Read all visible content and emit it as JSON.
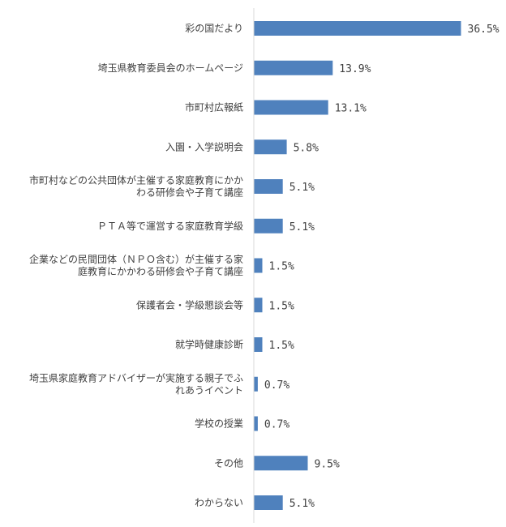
{
  "chart_data": {
    "type": "bar",
    "orientation": "horizontal",
    "categories": [
      "彩の国だより",
      "埼玉県教育委員会のホームページ",
      "市町村広報紙",
      "入園・入学説明会",
      "市町村などの公共団体が主催する家庭教育にかかわる研修会や子育て講座",
      "ＰＴＡ等で運営する家庭教育学級",
      "企業などの民間団体（ＮＰＯ含む）が主催する家庭教育にかかわる研修会や子育て講座",
      "保護者会・学級懇談会等",
      "就学時健康診断",
      "埼玉県家庭教育アドバイザーが実施する親子でふれあうイベント",
      "学校の授業",
      "その他",
      "わからない"
    ],
    "category_lines": [
      [
        "彩の国だより"
      ],
      [
        "埼玉県教育委員会のホームページ"
      ],
      [
        "市町村広報紙"
      ],
      [
        "入園・入学説明会"
      ],
      [
        "市町村などの公共団体が主催する家庭教育にかか",
        "わる研修会や子育て講座"
      ],
      [
        "ＰＴＡ等で運営する家庭教育学級"
      ],
      [
        "企業などの民間団体（ＮＰＯ含む）が主催する家",
        "庭教育にかかわる研修会や子育て講座"
      ],
      [
        "保護者会・学級懇談会等"
      ],
      [
        "就学時健康診断"
      ],
      [
        "埼玉県家庭教育アドバイザーが実施する親子でふ",
        "れあうイベント"
      ],
      [
        "学校の授業"
      ],
      [
        "その他"
      ],
      [
        "わからない"
      ]
    ],
    "values": [
      36.5,
      13.9,
      13.1,
      5.8,
      5.1,
      5.1,
      1.5,
      1.5,
      1.5,
      0.7,
      0.7,
      9.5,
      5.1
    ],
    "value_labels": [
      "36.5%",
      "13.9%",
      "13.1%",
      "5.8%",
      "5.1%",
      "5.1%",
      "1.5%",
      "1.5%",
      "1.5%",
      "0.7%",
      "0.7%",
      "9.5%",
      "5.1%"
    ],
    "title": "",
    "xlabel": "",
    "ylabel": "",
    "xlim": [
      0,
      40
    ],
    "grid": false,
    "legend": "none",
    "bar_color": "#4f81bd",
    "axis_color": "#d9d9d9"
  }
}
